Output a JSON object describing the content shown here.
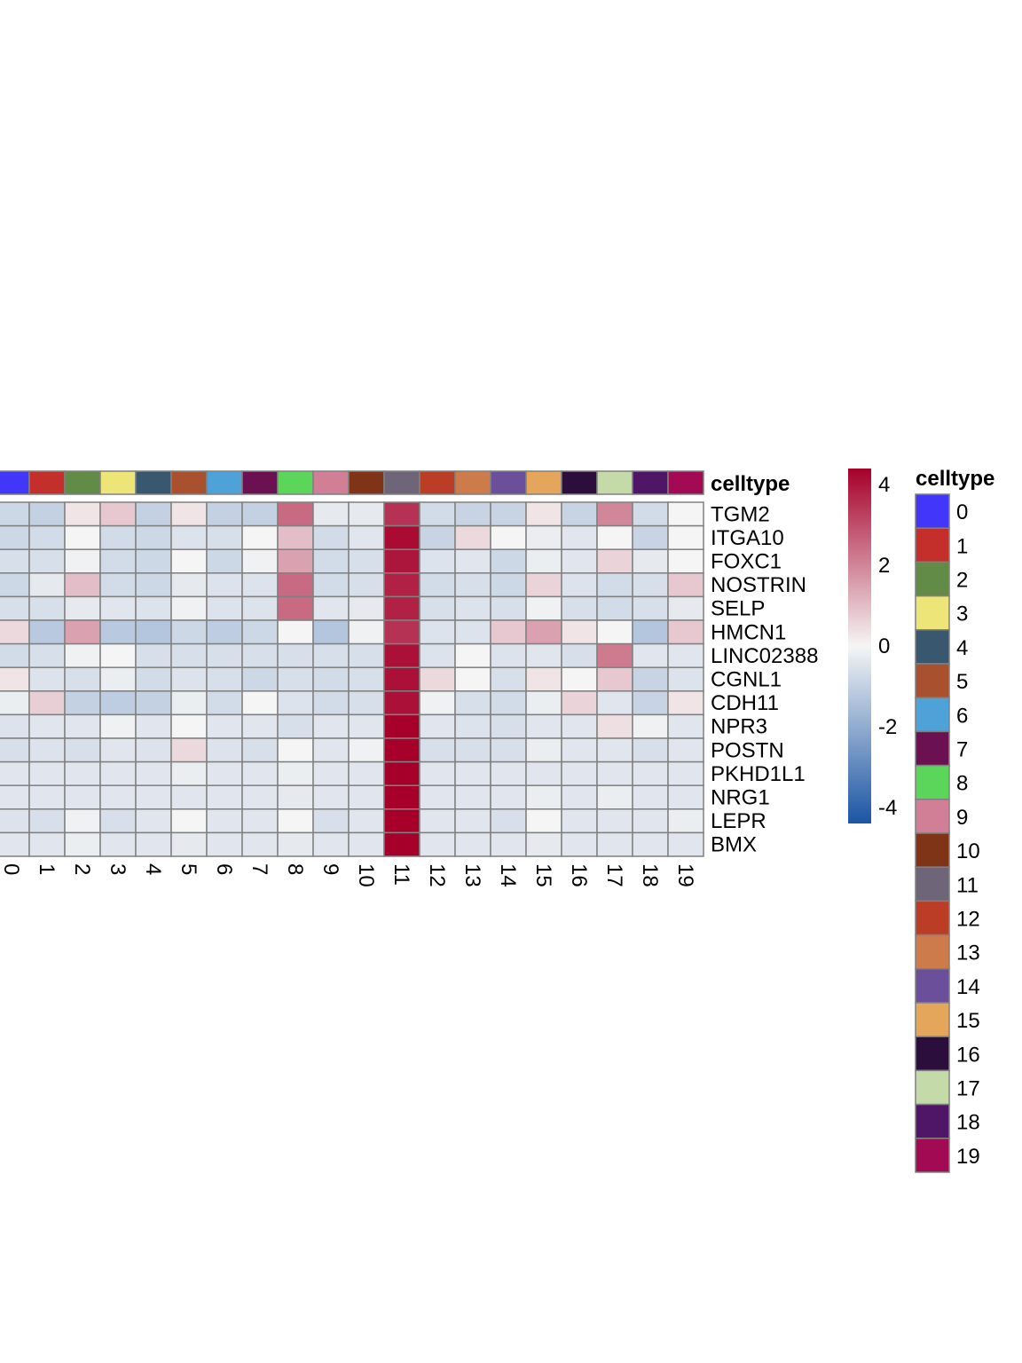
{
  "chart_data": {
    "type": "heatmap",
    "title": "",
    "annotation_title": "celltype",
    "legend_title": "celltype",
    "columns": [
      "0",
      "1",
      "2",
      "3",
      "4",
      "5",
      "6",
      "7",
      "8",
      "9",
      "10",
      "11",
      "12",
      "13",
      "14",
      "15",
      "16",
      "17",
      "18",
      "19"
    ],
    "column_colors": [
      "#4236fb",
      "#c42f2c",
      "#618b47",
      "#ede577",
      "#39586f",
      "#a9502f",
      "#4ea2d7",
      "#6b1051",
      "#5bd65a",
      "#d17f96",
      "#7f3317",
      "#6f6579",
      "#bc3d25",
      "#cd7b4a",
      "#6b4f9b",
      "#e3a65b",
      "#2b0e3b",
      "#c4dba9",
      "#4f1566",
      "#a20b53"
    ],
    "rows": [
      "TGM2",
      "ITGA10",
      "FOXC1",
      "NOSTRIN",
      "SELP",
      "HMCN1",
      "LINC02388",
      "CGNL1",
      "CDH11",
      "NPR3",
      "POSTN",
      "PKHD1L1",
      "NRG1",
      "LEPR",
      "BMX"
    ],
    "values": [
      [
        -0.8,
        -1.0,
        0.3,
        0.8,
        -1.0,
        0.3,
        -1.0,
        -1.0,
        2.5,
        -0.3,
        -0.3,
        3.5,
        -0.7,
        -0.9,
        -0.9,
        0.3,
        -0.9,
        2.0,
        -0.7,
        0.0
      ],
      [
        -0.8,
        -0.7,
        0.0,
        -0.7,
        -0.8,
        -0.5,
        -0.6,
        0.0,
        1.0,
        -0.7,
        -0.4,
        4.2,
        -0.9,
        0.5,
        0.0,
        -0.2,
        -0.4,
        0.0,
        -0.9,
        0.0
      ],
      [
        -0.6,
        -0.6,
        -0.1,
        -0.7,
        -0.8,
        0.0,
        -0.8,
        -0.1,
        1.5,
        -0.7,
        -0.6,
        4.0,
        -0.5,
        -0.4,
        -0.8,
        -0.2,
        -0.4,
        0.6,
        -0.3,
        0.0
      ],
      [
        -0.8,
        -0.3,
        1.0,
        -0.7,
        -0.8,
        -0.3,
        -0.5,
        -0.5,
        2.5,
        -0.7,
        -0.6,
        3.8,
        -0.7,
        -0.6,
        -0.8,
        0.6,
        -0.5,
        -0.7,
        -0.6,
        0.8
      ],
      [
        -0.6,
        -0.6,
        -0.3,
        -0.4,
        -0.5,
        -0.1,
        -0.5,
        -0.5,
        2.5,
        -0.4,
        -0.3,
        3.8,
        -0.6,
        -0.5,
        -0.6,
        -0.1,
        -0.6,
        -0.7,
        -0.6,
        -0.3
      ],
      [
        0.5,
        -1.2,
        1.5,
        -1.2,
        -1.3,
        -0.8,
        -1.1,
        -0.8,
        0.0,
        -1.3,
        -0.1,
        3.5,
        -0.5,
        -0.5,
        0.8,
        1.5,
        0.3,
        0.0,
        -1.3,
        0.8
      ],
      [
        -0.7,
        -0.6,
        -0.1,
        0.0,
        -0.6,
        -0.6,
        -0.6,
        -0.6,
        -0.6,
        -0.6,
        -0.6,
        4.1,
        -0.5,
        0.0,
        -0.5,
        -0.4,
        -0.6,
        2.2,
        -0.4,
        -0.4
      ],
      [
        0.3,
        -0.5,
        -0.6,
        -0.2,
        -0.7,
        -0.5,
        -0.6,
        -0.8,
        -0.6,
        -0.7,
        -0.6,
        4.1,
        0.5,
        0.0,
        -0.6,
        0.3,
        0.0,
        0.8,
        -0.9,
        -0.5
      ],
      [
        -0.2,
        0.7,
        -1.0,
        -1.1,
        -1.0,
        -0.2,
        -0.7,
        0.0,
        -0.5,
        -0.7,
        -0.6,
        4.1,
        -0.1,
        -0.6,
        -0.7,
        -0.2,
        0.6,
        -0.4,
        -0.9,
        0.3
      ],
      [
        -0.5,
        -0.4,
        -0.4,
        -0.1,
        -0.4,
        0.0,
        -0.4,
        -0.4,
        -0.6,
        -0.4,
        -0.4,
        4.4,
        -0.4,
        -0.5,
        -0.6,
        -0.4,
        -0.4,
        0.4,
        -0.1,
        -0.4
      ],
      [
        -0.6,
        -0.5,
        -0.6,
        -0.4,
        -0.5,
        0.5,
        -0.5,
        -0.6,
        0.0,
        -0.4,
        -0.1,
        4.4,
        -0.6,
        -0.6,
        -0.6,
        -0.2,
        -0.4,
        -0.4,
        -0.6,
        -0.4
      ],
      [
        -0.4,
        -0.4,
        -0.4,
        -0.4,
        -0.4,
        -0.2,
        -0.4,
        -0.4,
        -0.2,
        -0.4,
        -0.4,
        4.4,
        -0.4,
        -0.4,
        -0.4,
        -0.4,
        -0.4,
        -0.4,
        -0.4,
        -0.4
      ],
      [
        -0.4,
        -0.4,
        -0.4,
        -0.4,
        -0.4,
        -0.4,
        -0.4,
        -0.4,
        -0.3,
        -0.4,
        -0.4,
        4.4,
        -0.4,
        -0.4,
        -0.4,
        -0.2,
        -0.4,
        -0.2,
        -0.4,
        -0.4
      ],
      [
        -0.5,
        -0.6,
        -0.1,
        -0.6,
        -0.4,
        0.0,
        -0.4,
        -0.4,
        0.0,
        -0.6,
        -0.4,
        4.4,
        -0.4,
        -0.4,
        -0.6,
        0.0,
        -0.4,
        -0.4,
        -0.4,
        -0.2
      ],
      [
        -0.4,
        -0.4,
        -0.2,
        -0.4,
        -0.4,
        -0.3,
        -0.4,
        -0.4,
        -0.3,
        -0.4,
        -0.4,
        4.4,
        -0.4,
        -0.4,
        -0.4,
        -0.3,
        -0.4,
        -0.4,
        -0.4,
        -0.4
      ]
    ],
    "color_scale": {
      "min": -4.4,
      "max": 4.4,
      "low_color": "#1a55a4",
      "mid_color": "#f5f5f5",
      "high_color": "#a6002a"
    },
    "colorbar_ticks": [
      4,
      2,
      0,
      -2,
      -4
    ],
    "xlabel": "",
    "ylabel": ""
  }
}
